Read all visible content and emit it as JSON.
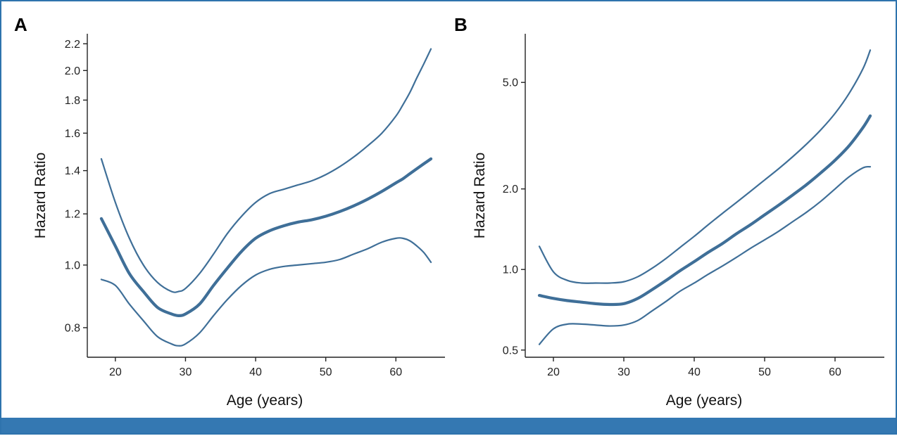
{
  "figure": {
    "accent_color": "#3478b2",
    "line_color": "#3f6f98"
  },
  "chart_data": [
    {
      "panel": "A",
      "type": "line",
      "title": "A",
      "xlabel": "Age (years)",
      "ylabel": "Hazard Ratio",
      "yscale": "log",
      "xlim": [
        16,
        67
      ],
      "ylim": [
        0.72,
        2.28
      ],
      "xticks": [
        20,
        30,
        40,
        50,
        60
      ],
      "yticks": [
        0.8,
        1.0,
        1.2,
        1.4,
        1.6,
        1.8,
        2.0,
        2.2
      ],
      "ytick_labels": [
        "0.8",
        "1.0",
        "1.2",
        "1.4",
        "1.6",
        "1.8",
        "2.0",
        "2.2"
      ],
      "x": [
        18,
        20,
        22,
        24,
        26,
        28,
        29,
        30,
        32,
        34,
        36,
        38,
        40,
        42,
        44,
        46,
        48,
        50,
        52,
        54,
        56,
        58,
        60,
        61,
        62,
        63,
        64,
        65
      ],
      "series": [
        {
          "name": "upper_ci",
          "role": "ci",
          "values": [
            1.46,
            1.25,
            1.1,
            1.0,
            0.94,
            0.91,
            0.91,
            0.92,
            0.97,
            1.04,
            1.12,
            1.19,
            1.25,
            1.29,
            1.31,
            1.33,
            1.35,
            1.38,
            1.42,
            1.47,
            1.53,
            1.6,
            1.7,
            1.77,
            1.85,
            1.95,
            2.05,
            2.16
          ]
        },
        {
          "name": "hazard_ratio",
          "role": "estimate",
          "values": [
            1.18,
            1.07,
            0.97,
            0.91,
            0.86,
            0.84,
            0.835,
            0.84,
            0.87,
            0.93,
            0.99,
            1.05,
            1.1,
            1.13,
            1.15,
            1.165,
            1.175,
            1.19,
            1.21,
            1.235,
            1.265,
            1.3,
            1.34,
            1.36,
            1.385,
            1.41,
            1.435,
            1.46
          ]
        },
        {
          "name": "lower_ci",
          "role": "ci",
          "values": [
            0.95,
            0.93,
            0.87,
            0.82,
            0.775,
            0.755,
            0.75,
            0.755,
            0.785,
            0.835,
            0.885,
            0.93,
            0.965,
            0.985,
            0.995,
            1.0,
            1.005,
            1.01,
            1.02,
            1.04,
            1.06,
            1.085,
            1.1,
            1.1,
            1.09,
            1.07,
            1.045,
            1.01
          ]
        }
      ]
    },
    {
      "panel": "B",
      "type": "line",
      "title": "B",
      "xlabel": "Age (years)",
      "ylabel": "Hazard Ratio",
      "yscale": "log",
      "xlim": [
        16,
        67
      ],
      "ylim": [
        0.47,
        7.6
      ],
      "xticks": [
        20,
        30,
        40,
        50,
        60
      ],
      "yticks": [
        0.5,
        1.0,
        2.0,
        5.0
      ],
      "ytick_labels": [
        "0.5",
        "1.0",
        "2.0",
        "5.0"
      ],
      "x": [
        18,
        20,
        22,
        24,
        26,
        28,
        30,
        32,
        34,
        36,
        38,
        40,
        42,
        44,
        46,
        48,
        50,
        52,
        54,
        56,
        58,
        60,
        62,
        64,
        65
      ],
      "series": [
        {
          "name": "upper_ci",
          "role": "ci",
          "values": [
            1.22,
            0.98,
            0.91,
            0.89,
            0.89,
            0.89,
            0.9,
            0.94,
            1.01,
            1.1,
            1.21,
            1.33,
            1.47,
            1.62,
            1.78,
            1.96,
            2.16,
            2.38,
            2.64,
            2.95,
            3.33,
            3.83,
            4.55,
            5.65,
            6.6
          ]
        },
        {
          "name": "hazard_ratio",
          "role": "estimate",
          "values": [
            0.8,
            0.78,
            0.765,
            0.755,
            0.745,
            0.74,
            0.745,
            0.78,
            0.84,
            0.91,
            0.99,
            1.07,
            1.16,
            1.25,
            1.36,
            1.47,
            1.6,
            1.74,
            1.9,
            2.08,
            2.3,
            2.56,
            2.9,
            3.4,
            3.75
          ]
        },
        {
          "name": "lower_ci",
          "role": "ci",
          "values": [
            0.525,
            0.6,
            0.625,
            0.625,
            0.62,
            0.615,
            0.62,
            0.645,
            0.7,
            0.76,
            0.83,
            0.89,
            0.96,
            1.03,
            1.11,
            1.2,
            1.29,
            1.39,
            1.51,
            1.64,
            1.8,
            2.0,
            2.22,
            2.4,
            2.42
          ]
        }
      ]
    }
  ]
}
